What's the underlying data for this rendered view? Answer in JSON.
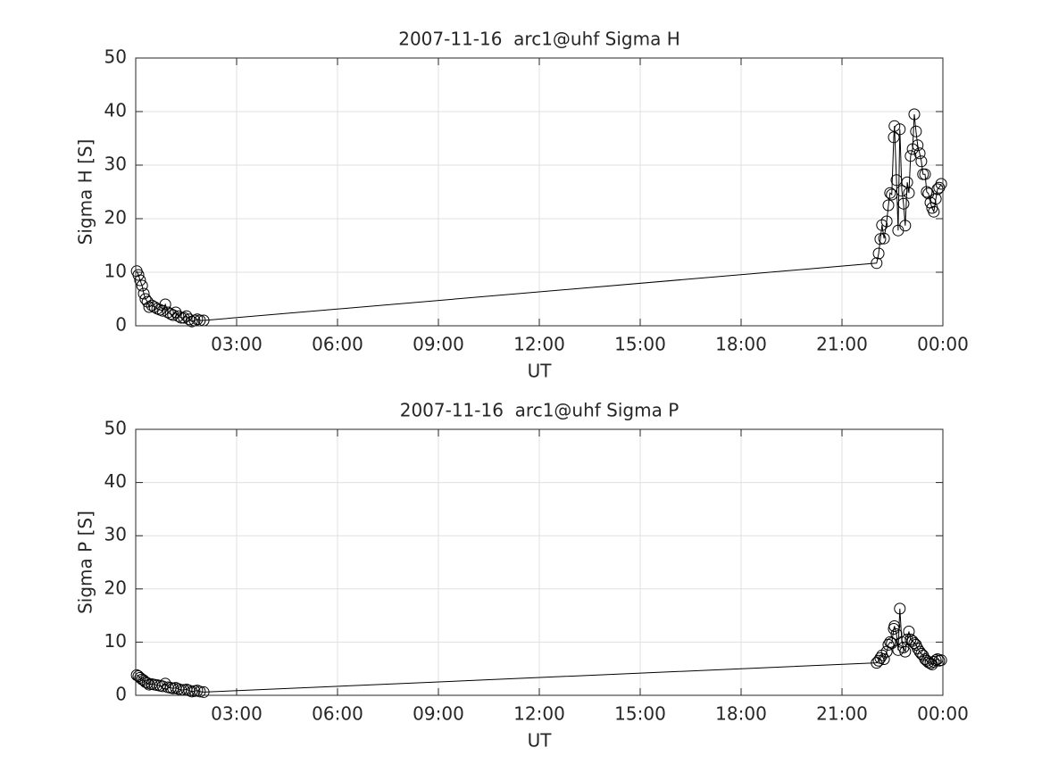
{
  "chart_data": [
    {
      "type": "line",
      "title": "2007-11-16  arc1@uhf Sigma H",
      "xlabel": "UT",
      "ylabel": "Sigma H [S]",
      "x": [
        0.03,
        0.08,
        0.13,
        0.19,
        0.24,
        0.29,
        0.35,
        0.4,
        0.48,
        0.56,
        0.64,
        0.72,
        0.8,
        0.88,
        0.96,
        1.04,
        1.11,
        1.19,
        1.27,
        1.35,
        1.43,
        1.51,
        1.59,
        1.67,
        1.75,
        1.83,
        1.91,
        2.02,
        22.03,
        22.09,
        22.14,
        22.19,
        22.25,
        22.33,
        22.38,
        22.43,
        22.48,
        22.54,
        22.56,
        22.62,
        22.67,
        22.72,
        22.78,
        22.83,
        22.88,
        22.94,
        22.99,
        23.04,
        23.1,
        23.15,
        23.2,
        23.25,
        23.31,
        23.36,
        23.41,
        23.47,
        23.52,
        23.57,
        23.63,
        23.68,
        23.73,
        23.79,
        23.84,
        23.89,
        23.95
      ],
      "values": [
        10.2,
        9.5,
        8.5,
        7.5,
        6.0,
        5.0,
        4.5,
        3.5,
        3.8,
        3.5,
        3.2,
        3.0,
        2.8,
        4.0,
        2.5,
        2.2,
        2.0,
        2.5,
        1.8,
        1.5,
        1.5,
        1.8,
        1.2,
        0.8,
        1.0,
        1.2,
        1.0,
        1.0,
        11.7,
        13.5,
        16.2,
        18.8,
        16.3,
        19.5,
        22.5,
        24.8,
        24.5,
        35.2,
        37.3,
        27.2,
        17.8,
        36.7,
        25.2,
        22.8,
        18.7,
        26.8,
        24.8,
        31.7,
        33.0,
        39.5,
        36.3,
        33.7,
        32.2,
        30.7,
        28.3,
        28.3,
        25.0,
        24.7,
        23.0,
        22.0,
        21.3,
        23.7,
        25.5,
        25.8,
        26.5
      ],
      "color": "#000000",
      "marker": "circle",
      "xlim": [
        0,
        24
      ],
      "ylim": [
        0,
        50
      ],
      "xticks": [
        {
          "value": 3,
          "label": "03:00"
        },
        {
          "value": 6,
          "label": "06:00"
        },
        {
          "value": 9,
          "label": "09:00"
        },
        {
          "value": 12,
          "label": "12:00"
        },
        {
          "value": 15,
          "label": "15:00"
        },
        {
          "value": 18,
          "label": "18:00"
        },
        {
          "value": 21,
          "label": "21:00"
        },
        {
          "value": 24,
          "label": "00:00"
        }
      ],
      "yticks": [
        0,
        10,
        20,
        30,
        40,
        50
      ],
      "grid": true
    },
    {
      "type": "line",
      "title": "2007-11-16  arc1@uhf Sigma P",
      "xlabel": "UT",
      "ylabel": "Sigma P [S]",
      "x": [
        0.03,
        0.08,
        0.13,
        0.19,
        0.24,
        0.29,
        0.35,
        0.4,
        0.48,
        0.56,
        0.64,
        0.72,
        0.8,
        0.88,
        0.96,
        1.04,
        1.11,
        1.19,
        1.27,
        1.35,
        1.43,
        1.51,
        1.59,
        1.67,
        1.75,
        1.83,
        1.91,
        2.02,
        22.03,
        22.09,
        22.14,
        22.19,
        22.25,
        22.33,
        22.38,
        22.43,
        22.48,
        22.54,
        22.56,
        22.62,
        22.67,
        22.72,
        22.78,
        22.83,
        22.88,
        22.94,
        22.99,
        23.04,
        23.1,
        23.15,
        23.2,
        23.25,
        23.31,
        23.36,
        23.41,
        23.47,
        23.52,
        23.57,
        23.63,
        23.68,
        23.73,
        23.79,
        23.84,
        23.89,
        23.95
      ],
      "values": [
        3.8,
        3.6,
        3.3,
        3.0,
        2.8,
        2.5,
        2.3,
        2.0,
        2.1,
        2.0,
        1.9,
        1.8,
        1.7,
        2.2,
        1.5,
        1.4,
        1.3,
        1.4,
        1.2,
        1.0,
        1.0,
        1.1,
        0.9,
        0.7,
        0.8,
        0.9,
        0.7,
        0.6,
        6.1,
        6.5,
        7.0,
        7.5,
        6.8,
        8.2,
        9.5,
        10.0,
        9.8,
        12.5,
        13.0,
        11.5,
        8.5,
        16.3,
        10.0,
        9.0,
        8.2,
        10.5,
        12.0,
        10.5,
        10.2,
        9.8,
        9.5,
        8.8,
        8.2,
        7.8,
        7.5,
        6.8,
        6.5,
        6.2,
        6.0,
        5.8,
        6.3,
        6.6,
        6.8,
        6.5,
        6.6
      ],
      "color": "#000000",
      "marker": "circle",
      "xlim": [
        0,
        24
      ],
      "ylim": [
        0,
        50
      ],
      "xticks": [
        {
          "value": 3,
          "label": "03:00"
        },
        {
          "value": 6,
          "label": "06:00"
        },
        {
          "value": 9,
          "label": "09:00"
        },
        {
          "value": 12,
          "label": "12:00"
        },
        {
          "value": 15,
          "label": "15:00"
        },
        {
          "value": 18,
          "label": "18:00"
        },
        {
          "value": 21,
          "label": "21:00"
        },
        {
          "value": 24,
          "label": "00:00"
        }
      ],
      "yticks": [
        0,
        10,
        20,
        30,
        40,
        50
      ],
      "grid": true
    }
  ]
}
